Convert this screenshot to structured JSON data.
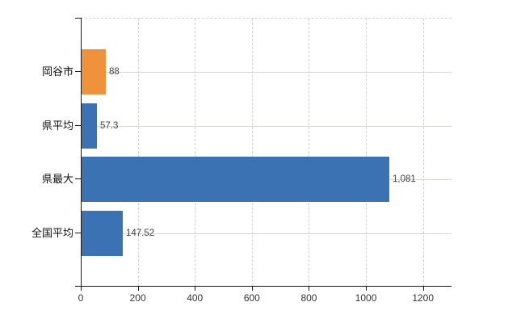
{
  "chart_data": {
    "type": "bar",
    "orientation": "horizontal",
    "title": "",
    "categories": [
      "岡谷市",
      "県平均",
      "県最大",
      "全国平均"
    ],
    "values": [
      88,
      57.3,
      1081,
      147.52
    ],
    "value_labels": [
      "88",
      "57.3",
      "1,081",
      "147.52"
    ],
    "series_colors": [
      "#f0923b",
      "#3a72b4",
      "#3a72b4",
      "#3a72b4"
    ],
    "xlim": [
      0,
      1300
    ],
    "x_ticks": [
      0,
      200,
      400,
      600,
      800,
      1000,
      1200
    ],
    "x_tick_labels": [
      "0",
      "200",
      "400",
      "600",
      "800",
      "1000",
      "1200"
    ],
    "legend": "none",
    "grid": {
      "vertical_style": "dashed",
      "horizontal_style": "solid",
      "vertical_color": "#d5cfd3",
      "horizontal_color": "#d2d8cf",
      "plot_top_border": "dashed"
    },
    "axis_color": "#1a1a1a",
    "category_label_color": "#111111",
    "value_label_color": "#3f3f3f",
    "tick_label_color": "#333333",
    "background_color": "#ffffff"
  }
}
